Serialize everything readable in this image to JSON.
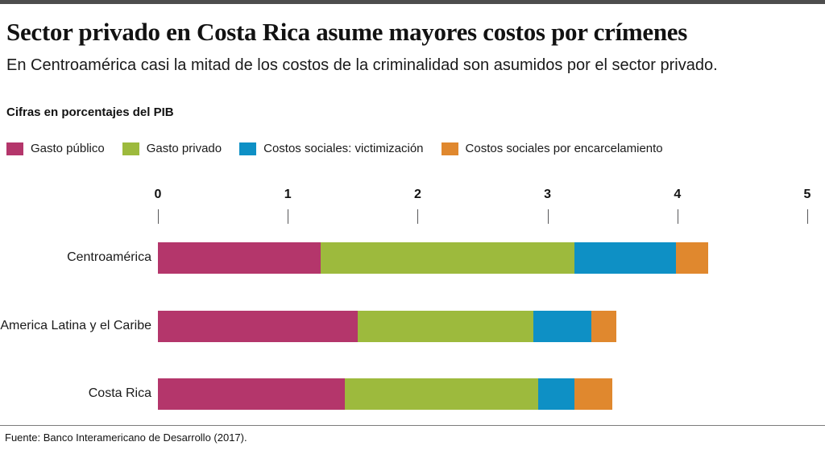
{
  "header": {
    "title": "Sector privado en Costa Rica asume mayores costos por crímenes",
    "subtitle": "En Centroamérica casi la mitad de los costos de la criminalidad son asumidos por el sector privado.",
    "units_label": "Cifras en porcentajes del PIB"
  },
  "legend": {
    "items": [
      {
        "label": "Gasto público",
        "color": "#b4366b"
      },
      {
        "label": "Gasto privado",
        "color": "#9dba3d"
      },
      {
        "label": "Costos sociales: victimización",
        "color": "#0e90c5"
      },
      {
        "label": "Costos sociales por encarcelamiento",
        "color": "#e0882e"
      }
    ]
  },
  "chart_data": {
    "type": "bar",
    "orientation": "horizontal",
    "stacked": true,
    "title": "Sector privado en Costa Rica asume mayores costos por crímenes",
    "subtitle": "En Centroamérica casi la mitad de los costos de la criminalidad son asumidos por el sector privado.",
    "units_note": "Cifras en porcentajes del PIB",
    "categories": [
      "Centroamérica",
      "America Latina y el Caribe",
      "Costa Rica"
    ],
    "series": [
      {
        "name": "Gasto público",
        "color": "#b4366b",
        "values": [
          1.25,
          1.54,
          1.44
        ]
      },
      {
        "name": "Gasto privado",
        "color": "#9dba3d",
        "values": [
          1.96,
          1.35,
          1.49
        ]
      },
      {
        "name": "Costos sociales: victimización",
        "color": "#0e90c5",
        "values": [
          0.78,
          0.45,
          0.28
        ]
      },
      {
        "name": "Costos sociales por encarcelamiento",
        "color": "#e0882e",
        "values": [
          0.25,
          0.19,
          0.29
        ]
      }
    ],
    "totals": [
      4.24,
      3.53,
      3.5
    ],
    "x_axis": {
      "range": [
        0,
        5
      ],
      "ticks": [
        0,
        1,
        2,
        3,
        4,
        5
      ]
    },
    "xlabel": "",
    "ylabel": "",
    "grid": false,
    "legend_position": "top"
  },
  "footer": {
    "source": "Fuente: Banco Interamericano de Desarrollo (2017)."
  }
}
